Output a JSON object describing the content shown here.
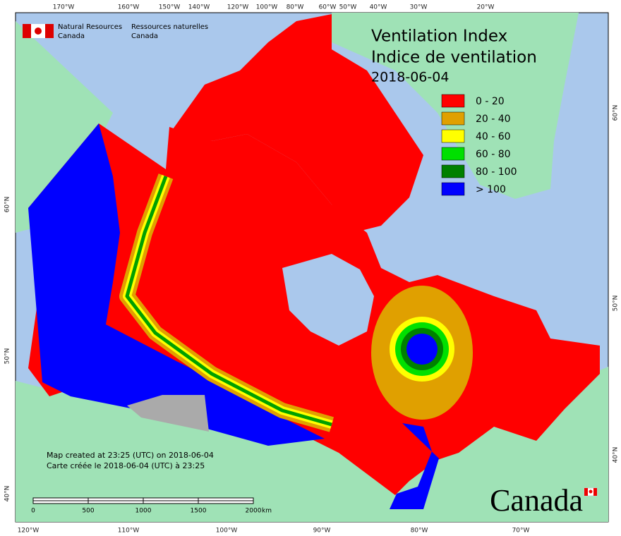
{
  "header": {
    "agency_en": [
      "Natural Resources",
      "Canada"
    ],
    "agency_fr": [
      "Ressources naturelles",
      "Canada"
    ]
  },
  "title": [
    "Ventilation Index",
    "Indice de ventilation",
    "2018-06-04"
  ],
  "legend": [
    {
      "label": "0 - 20",
      "color": "#ff0000"
    },
    {
      "label": "20 - 40",
      "color": "#e0a000"
    },
    {
      "label": "40 - 60",
      "color": "#ffff00"
    },
    {
      "label": "60 - 80",
      "color": "#00e000"
    },
    {
      "label": "80 - 100",
      "color": "#008000"
    },
    {
      "label": "> 100",
      "color": "#0000ff"
    }
  ],
  "graticule": {
    "top": [
      "170°W",
      "160°W",
      "150°W",
      "140°W",
      "120°W",
      "100°W",
      "80°W",
      "60°W",
      "50°W",
      "40°W",
      "30°W",
      "20°W"
    ],
    "bottom": [
      "120°W",
      "110°W",
      "100°W",
      "90°W",
      "80°W",
      "70°W"
    ],
    "left": [
      "60°N",
      "50°N",
      "40°N"
    ],
    "right": [
      "60°N",
      "50°N",
      "40°N"
    ]
  },
  "notes": [
    "Map created at 23:25 (UTC) on 2018-06-04",
    "Carte créée le 2018-06-04 (UTC) à 23:25"
  ],
  "scale": {
    "ticks": [
      0,
      500,
      1000,
      1500,
      2000
    ],
    "unit": "km"
  },
  "wordmark": "Canada"
}
